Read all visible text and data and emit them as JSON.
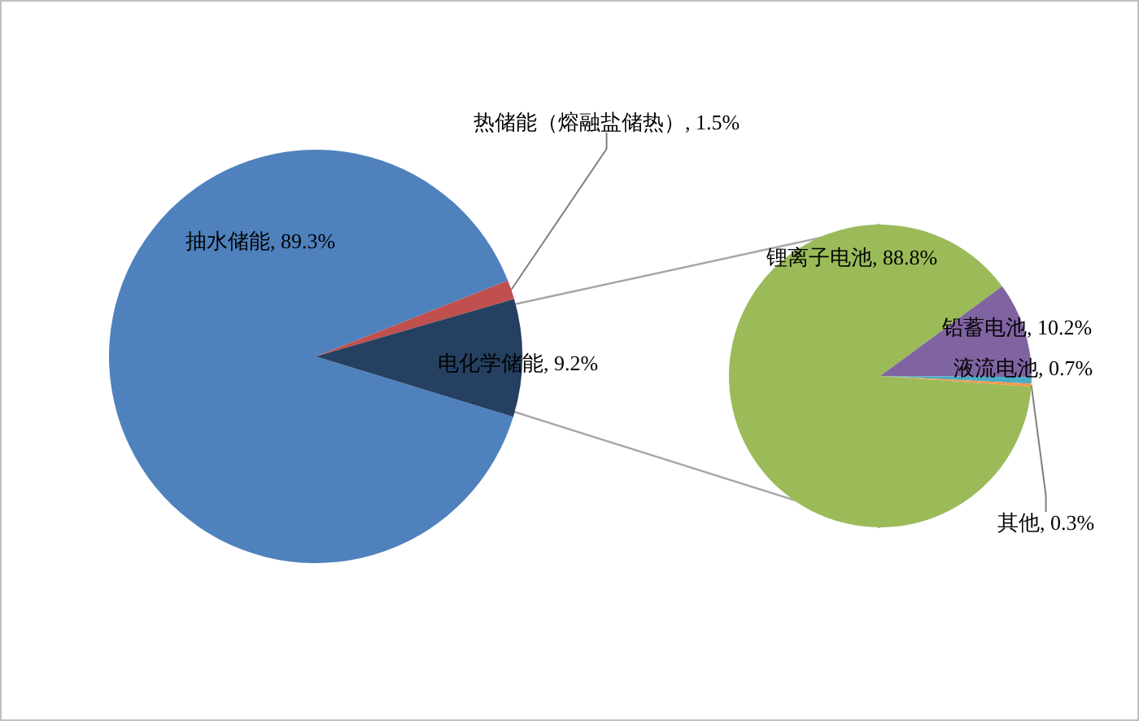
{
  "chart_data": [
    {
      "type": "pie",
      "categories": [
        "抽水储能",
        "热储能（熔融盐储热）",
        "电化学储能"
      ],
      "values": [
        89.3,
        1.5,
        9.2
      ],
      "value_labels": [
        "89.3%",
        "1.5%",
        "9.2%"
      ],
      "colors": [
        "#4f81bd",
        "#c0504d",
        "#254061"
      ],
      "legend": false
    },
    {
      "type": "pie",
      "categories": [
        "锂离子电池",
        "铅蓄电池",
        "液流电池",
        "其他"
      ],
      "values": [
        88.8,
        10.2,
        0.7,
        0.3
      ],
      "value_labels": [
        "88.8%",
        "10.2%",
        "0.7%",
        "0.3%"
      ],
      "colors": [
        "#9bbb59",
        "#8064a2",
        "#4bacc6",
        "#f79646"
      ],
      "legend": false
    }
  ]
}
